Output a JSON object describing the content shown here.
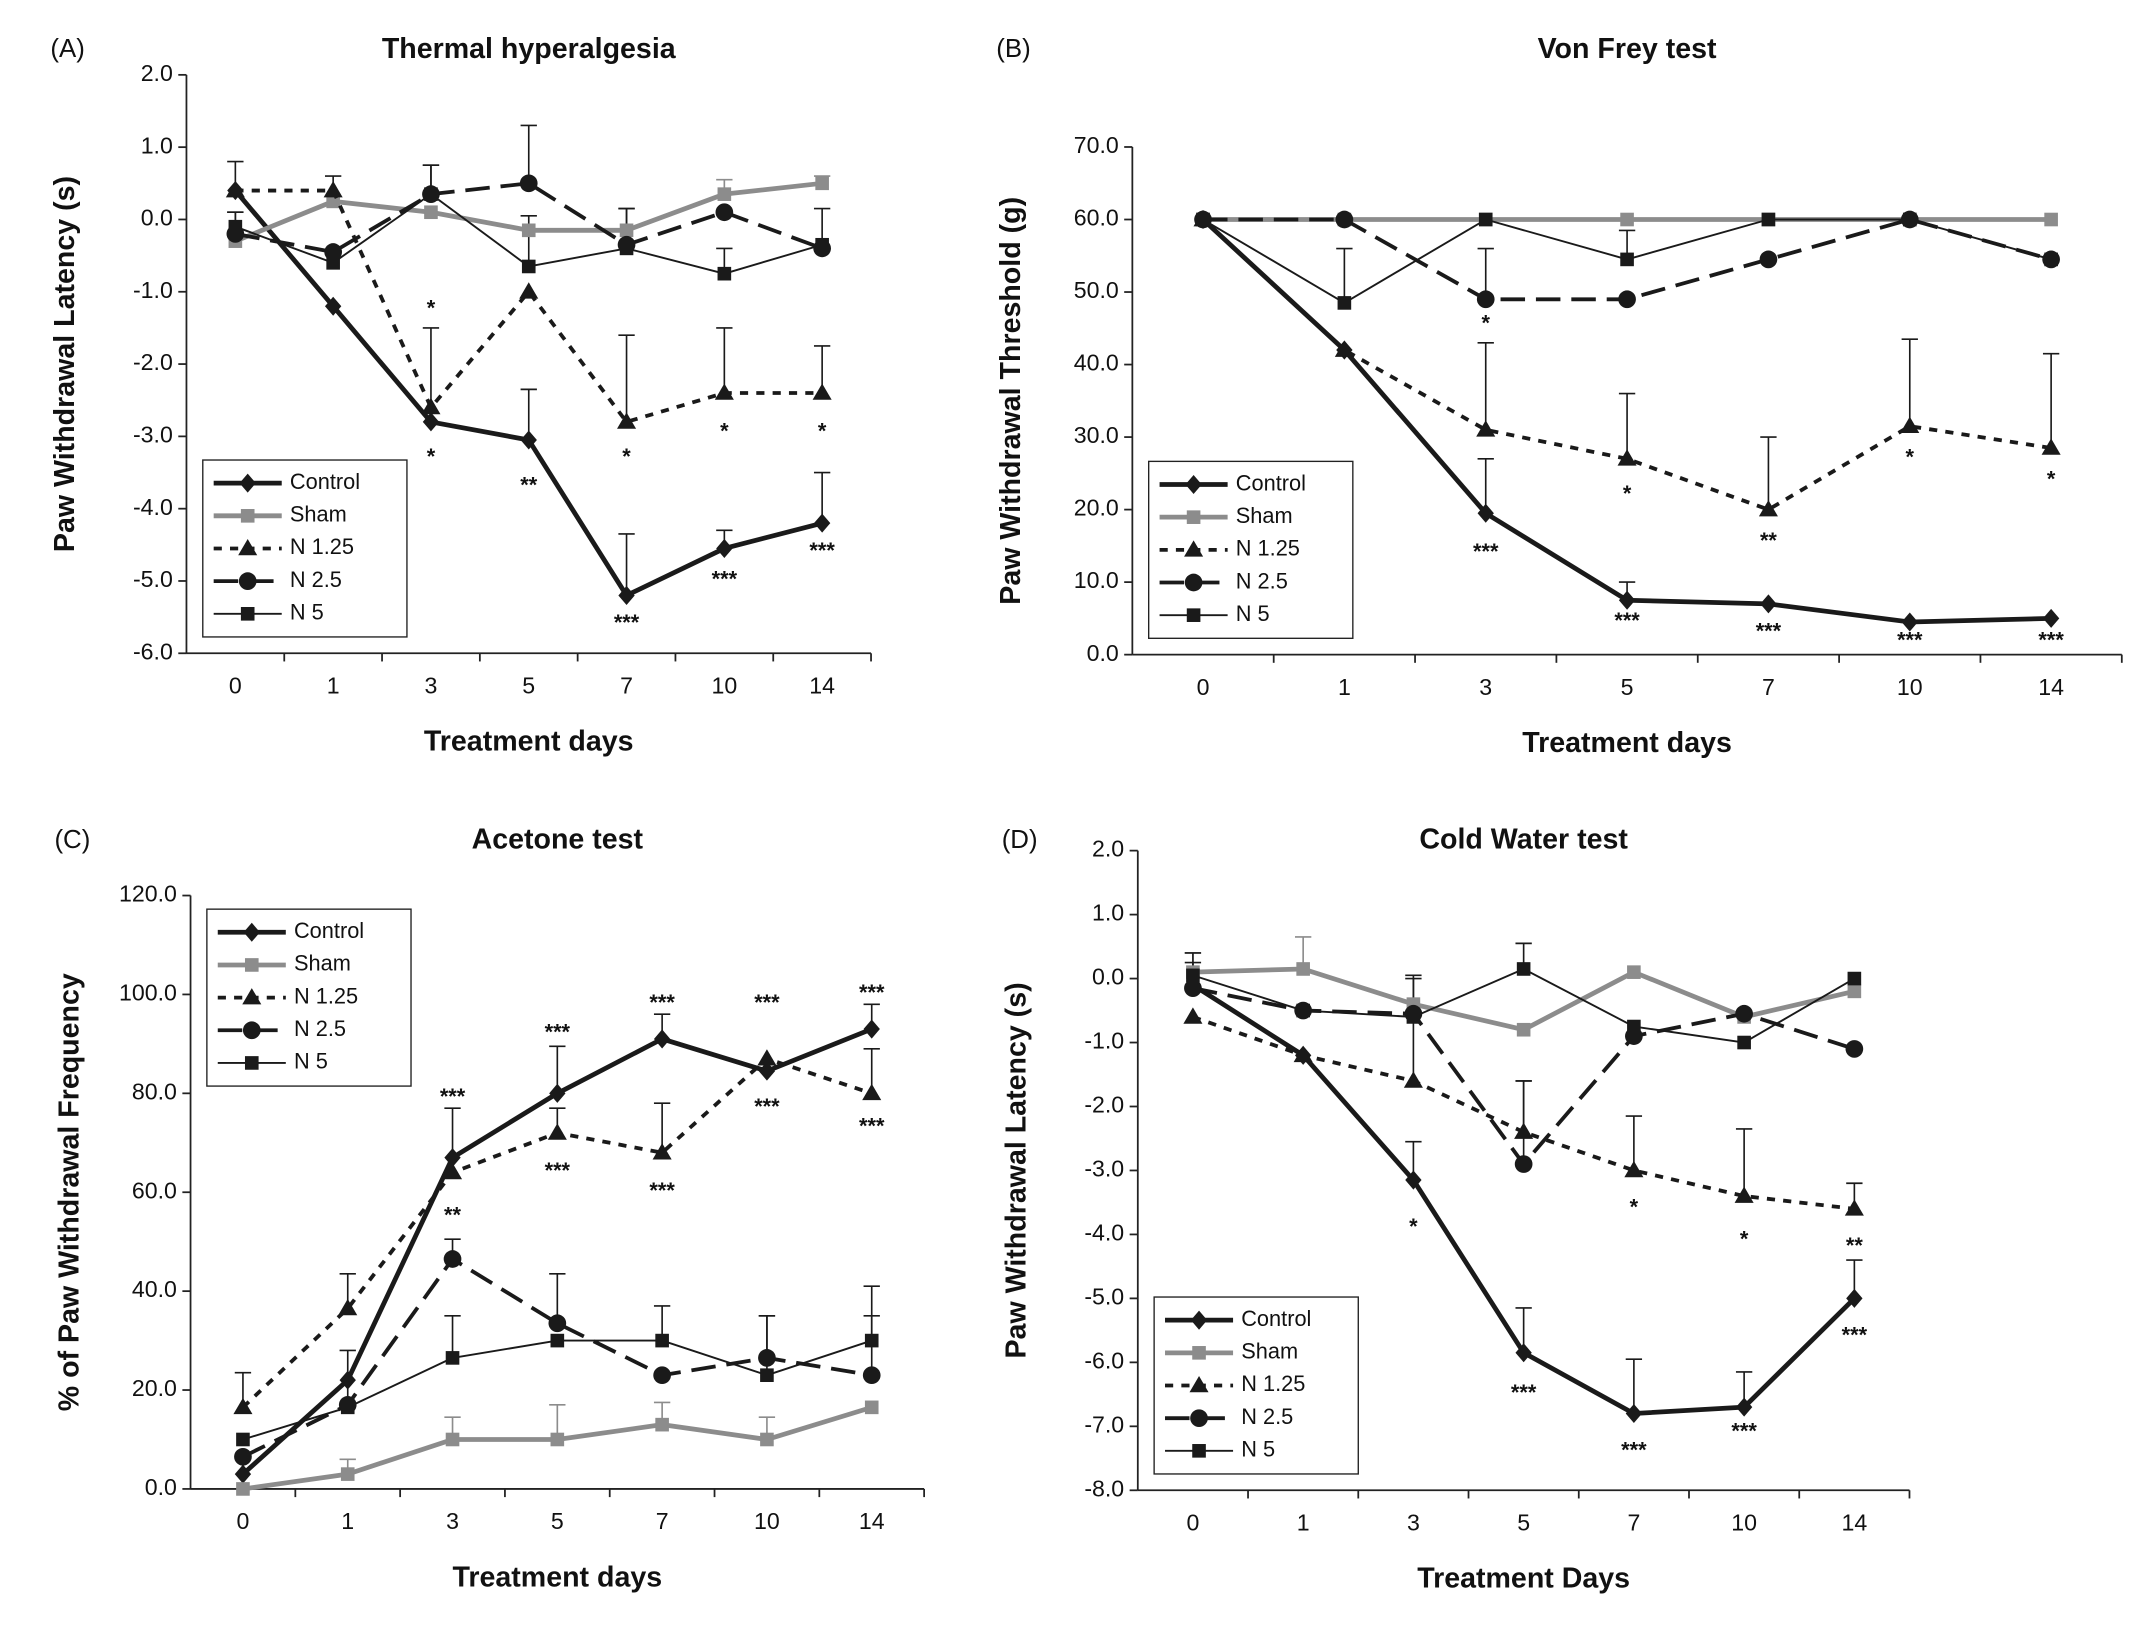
{
  "chart_data": [
    {
      "type": "line",
      "panel": "(A)",
      "title": "Thermal hyperalgesia",
      "x_label": "Treatment days",
      "y_label": "Paw Withdrawal Latency (s)",
      "legend": "lower left",
      "categories": [
        "0",
        "1",
        "3",
        "5",
        "7",
        "10",
        "14"
      ],
      "ylim": [
        -6,
        2
      ],
      "yticks": [
        {
          "value": -6,
          "label": "-6.0"
        },
        {
          "value": -5,
          "label": "-5.0"
        },
        {
          "value": -4,
          "label": "-4.0"
        },
        {
          "value": -3,
          "label": "-3.0"
        },
        {
          "value": -2,
          "label": "-2.0"
        },
        {
          "value": -1,
          "label": "-1.0"
        },
        {
          "value": 0,
          "label": "0.0"
        },
        {
          "value": 1,
          "label": "1.0"
        },
        {
          "value": 2,
          "label": "2.0"
        }
      ],
      "series": [
        {
          "name": "Control",
          "color": "#1a1a1a",
          "style": "thick",
          "marker": "diamond",
          "values": [
            0.4,
            -1.2,
            -2.8,
            -3.05,
            -5.2,
            -4.55,
            -4.2
          ],
          "errors": [
            0.4,
            null,
            null,
            0.7,
            0.85,
            0.25,
            0.7
          ]
        },
        {
          "name": "Sham",
          "color": "#8c8c8c",
          "style": "thick",
          "marker": "square",
          "values": [
            -0.3,
            0.25,
            0.1,
            -0.15,
            -0.15,
            0.35,
            0.5
          ],
          "errors": [
            null,
            null,
            null,
            null,
            null,
            0.2,
            0.1
          ]
        },
        {
          "name": "N 1.25",
          "color": "#1a1a1a",
          "style": "dotted",
          "marker": "triangle",
          "values": [
            0.4,
            0.4,
            -2.6,
            -1.0,
            -2.8,
            -2.4,
            -2.4
          ],
          "errors": [
            null,
            0.2,
            1.1,
            null,
            1.2,
            0.9,
            0.65
          ]
        },
        {
          "name": "N 2.5",
          "color": "#1a1a1a",
          "style": "dashed",
          "marker": "circle",
          "values": [
            -0.2,
            -0.45,
            0.35,
            0.5,
            -0.35,
            0.1,
            -0.4
          ],
          "errors": [
            0.3,
            null,
            0.4,
            0.8,
            0.5,
            null,
            0.55
          ]
        },
        {
          "name": "N 5",
          "color": "#1a1a1a",
          "style": "thin",
          "marker": "square",
          "values": [
            -0.1,
            -0.6,
            0.35,
            -0.65,
            -0.4,
            -0.75,
            -0.35
          ],
          "errors": [
            0.2,
            null,
            0.4,
            0.7,
            0.55,
            0.35,
            null
          ]
        }
      ],
      "annotations": [
        {
          "text": "*",
          "category": "3",
          "y": -1.25
        },
        {
          "text": "*",
          "category": "3",
          "y": -3.3
        },
        {
          "text": "**",
          "category": "5",
          "y": -3.7
        },
        {
          "text": "*",
          "category": "7",
          "y": -3.3
        },
        {
          "text": "***",
          "category": "7",
          "y": -5.6
        },
        {
          "text": "*",
          "category": "10",
          "y": -2.95
        },
        {
          "text": "***",
          "category": "10",
          "y": -5.0
        },
        {
          "text": "*",
          "category": "14",
          "y": -2.95
        },
        {
          "text": "***",
          "category": "14",
          "y": -4.6
        }
      ]
    },
    {
      "type": "line",
      "panel": "(B)",
      "title": "Von Frey test",
      "x_label": "Treatment days",
      "y_label": "Paw  Withdrawal Threshold (g)",
      "legend": "lower left",
      "categories": [
        "0",
        "1",
        "3",
        "5",
        "7",
        "10",
        "14"
      ],
      "ylim": [
        0,
        70
      ],
      "yticks": [
        {
          "value": 0,
          "label": "0.0"
        },
        {
          "value": 10,
          "label": "10.0"
        },
        {
          "value": 20,
          "label": "20.0"
        },
        {
          "value": 30,
          "label": "30.0"
        },
        {
          "value": 40,
          "label": "40.0"
        },
        {
          "value": 50,
          "label": "50.0"
        },
        {
          "value": 60,
          "label": "60.0"
        },
        {
          "value": 70,
          "label": "70.0"
        }
      ],
      "series": [
        {
          "name": "Control",
          "color": "#1a1a1a",
          "style": "thick",
          "marker": "diamond",
          "values": [
            60,
            42,
            19.5,
            7.5,
            7,
            4.5,
            5
          ],
          "errors": [
            null,
            null,
            7.5,
            2.5,
            null,
            null,
            null
          ]
        },
        {
          "name": "Sham",
          "color": "#8c8c8c",
          "style": "thick",
          "marker": "square",
          "values": [
            60,
            60,
            60,
            60,
            60,
            60,
            60
          ],
          "errors": [
            null,
            null,
            null,
            null,
            null,
            null,
            null
          ]
        },
        {
          "name": "N 1.25",
          "color": "#1a1a1a",
          "style": "dotted",
          "marker": "triangle",
          "values": [
            60,
            42,
            31,
            27,
            20,
            31.5,
            28.5
          ],
          "errors": [
            null,
            null,
            12,
            9,
            10,
            12,
            13
          ]
        },
        {
          "name": "N 2.5",
          "color": "#1a1a1a",
          "style": "dashed",
          "marker": "circle",
          "values": [
            60,
            60,
            49,
            49,
            54.5,
            60,
            54.5
          ],
          "errors": [
            null,
            null,
            7,
            null,
            null,
            null,
            null
          ]
        },
        {
          "name": "N 5",
          "color": "#1a1a1a",
          "style": "thin",
          "marker": "square",
          "values": [
            60,
            48.5,
            60,
            54.5,
            60,
            60,
            54.5
          ],
          "errors": [
            null,
            7.5,
            null,
            4,
            null,
            null,
            null
          ]
        }
      ],
      "annotations": [
        {
          "text": "*",
          "category": "3",
          "y": 45.5
        },
        {
          "text": "***",
          "category": "3",
          "y": 14
        },
        {
          "text": "*",
          "category": "5",
          "y": 22
        },
        {
          "text": "***",
          "category": "5",
          "y": 4.5
        },
        {
          "text": "**",
          "category": "7",
          "y": 15.5
        },
        {
          "text": "***",
          "category": "7",
          "y": 3
        },
        {
          "text": "*",
          "category": "10",
          "y": 27
        },
        {
          "text": "***",
          "category": "10",
          "y": 1.8
        },
        {
          "text": "*",
          "category": "14",
          "y": 24
        },
        {
          "text": "***",
          "category": "14",
          "y": 1.8
        }
      ]
    },
    {
      "type": "line",
      "panel": "(C)",
      "title": "Acetone test",
      "x_label": "Treatment days",
      "y_label": "% of Paw Withdrawal Frequency",
      "legend": "upper left",
      "categories": [
        "0",
        "1",
        "3",
        "5",
        "7",
        "10",
        "14"
      ],
      "ylim": [
        0,
        120
      ],
      "yticks": [
        {
          "value": 0,
          "label": "0.0"
        },
        {
          "value": 20,
          "label": "20.0"
        },
        {
          "value": 40,
          "label": "40.0"
        },
        {
          "value": 60,
          "label": "60.0"
        },
        {
          "value": 80,
          "label": "80.0"
        },
        {
          "value": 100,
          "label": "100.0"
        },
        {
          "value": 120,
          "label": "120.0"
        }
      ],
      "series": [
        {
          "name": "Control",
          "color": "#1a1a1a",
          "style": "thick",
          "marker": "diamond",
          "values": [
            3,
            22,
            67,
            80,
            91,
            84.5,
            93
          ],
          "errors": [
            null,
            null,
            10,
            9.5,
            5,
            null,
            5
          ]
        },
        {
          "name": "Sham",
          "color": "#8c8c8c",
          "style": "thick",
          "marker": "square",
          "values": [
            0,
            3,
            10,
            10,
            13,
            10,
            16.5
          ],
          "errors": [
            null,
            3,
            4.5,
            7,
            4.5,
            4.5,
            null
          ]
        },
        {
          "name": "N 1.25",
          "color": "#1a1a1a",
          "style": "dotted",
          "marker": "triangle",
          "values": [
            16.5,
            36.5,
            64,
            72,
            68,
            87,
            80
          ],
          "errors": [
            7,
            7,
            null,
            5,
            10,
            null,
            9
          ]
        },
        {
          "name": "N 2.5",
          "color": "#1a1a1a",
          "style": "dashed",
          "marker": "circle",
          "values": [
            6.5,
            17,
            46.5,
            33.5,
            23,
            26.5,
            23
          ],
          "errors": [
            null,
            null,
            4,
            10,
            null,
            8.5,
            12
          ]
        },
        {
          "name": "N 5",
          "color": "#1a1a1a",
          "style": "thin",
          "marker": "square",
          "values": [
            10,
            16.5,
            26.5,
            30,
            30,
            23,
            30
          ],
          "errors": [
            null,
            11.5,
            8.5,
            null,
            7,
            12,
            11
          ]
        }
      ],
      "annotations": [
        {
          "text": "***",
          "category": "3",
          "y": 79
        },
        {
          "text": "**",
          "category": "3",
          "y": 55
        },
        {
          "text": "***",
          "category": "5",
          "y": 92
        },
        {
          "text": "***",
          "category": "5",
          "y": 64
        },
        {
          "text": "***",
          "category": "7",
          "y": 98
        },
        {
          "text": "***",
          "category": "7",
          "y": 60
        },
        {
          "text": "***",
          "category": "10",
          "y": 98
        },
        {
          "text": "***",
          "category": "10",
          "y": 77
        },
        {
          "text": "***",
          "category": "14",
          "y": 100
        },
        {
          "text": "***",
          "category": "14",
          "y": 73
        }
      ]
    },
    {
      "type": "line",
      "panel": "(D)",
      "title": "Cold Water test",
      "x_label": "Treatment Days",
      "y_label": "Paw Withdrawal Latency (s)",
      "legend": "lower left",
      "categories": [
        "0",
        "1",
        "3",
        "5",
        "7",
        "10",
        "14"
      ],
      "ylim": [
        -8,
        2
      ],
      "yticks": [
        {
          "value": -8,
          "label": "-8.0"
        },
        {
          "value": -7,
          "label": "-7.0"
        },
        {
          "value": -6,
          "label": "-6.0"
        },
        {
          "value": -5,
          "label": "-5.0"
        },
        {
          "value": -4,
          "label": "-4.0"
        },
        {
          "value": -3,
          "label": "-3.0"
        },
        {
          "value": -2,
          "label": "-2.0"
        },
        {
          "value": -1,
          "label": "-1.0"
        },
        {
          "value": 0,
          "label": "0.0"
        },
        {
          "value": 1,
          "label": "1.0"
        },
        {
          "value": 2,
          "label": "2.0"
        }
      ],
      "series": [
        {
          "name": "Control",
          "color": "#1a1a1a",
          "style": "thick",
          "marker": "diamond",
          "values": [
            -0.1,
            -1.2,
            -3.15,
            -5.85,
            -6.8,
            -6.7,
            -5.0
          ],
          "errors": [
            null,
            null,
            0.6,
            0.7,
            0.85,
            0.55,
            0.6
          ]
        },
        {
          "name": "Sham",
          "color": "#8c8c8c",
          "style": "thick",
          "marker": "square",
          "values": [
            0.1,
            0.15,
            -0.4,
            -0.8,
            0.1,
            -0.6,
            -0.2
          ],
          "errors": [
            0.3,
            0.5,
            null,
            null,
            null,
            null,
            null
          ]
        },
        {
          "name": "N 1.25",
          "color": "#1a1a1a",
          "style": "dotted",
          "marker": "triangle",
          "values": [
            -0.6,
            -1.2,
            -1.6,
            -2.4,
            -3.0,
            -3.4,
            -3.6
          ],
          "errors": [
            null,
            null,
            1.6,
            0.8,
            0.85,
            1.05,
            0.4
          ]
        },
        {
          "name": "N 2.5",
          "color": "#1a1a1a",
          "style": "dashed",
          "marker": "circle",
          "values": [
            -0.15,
            -0.5,
            -0.55,
            -2.9,
            -0.9,
            -0.55,
            -1.1
          ],
          "errors": [
            0.4,
            null,
            0.6,
            1.3,
            null,
            null,
            null
          ]
        },
        {
          "name": "N 5",
          "color": "#1a1a1a",
          "style": "thin",
          "marker": "square",
          "values": [
            0.05,
            -0.5,
            -0.6,
            0.15,
            -0.75,
            -1.0,
            0
          ],
          "errors": [
            0.35,
            null,
            null,
            0.4,
            null,
            null,
            null
          ]
        }
      ],
      "annotations": [
        {
          "text": "*",
          "category": "3",
          "y": -3.9
        },
        {
          "text": "***",
          "category": "5",
          "y": -6.5
        },
        {
          "text": "*",
          "category": "7",
          "y": -3.6
        },
        {
          "text": "***",
          "category": "7",
          "y": -7.4
        },
        {
          "text": "*",
          "category": "10",
          "y": -4.1
        },
        {
          "text": "***",
          "category": "10",
          "y": -7.1
        },
        {
          "text": "**",
          "category": "14",
          "y": -4.2
        },
        {
          "text": "***",
          "category": "14",
          "y": -5.6
        }
      ]
    }
  ]
}
